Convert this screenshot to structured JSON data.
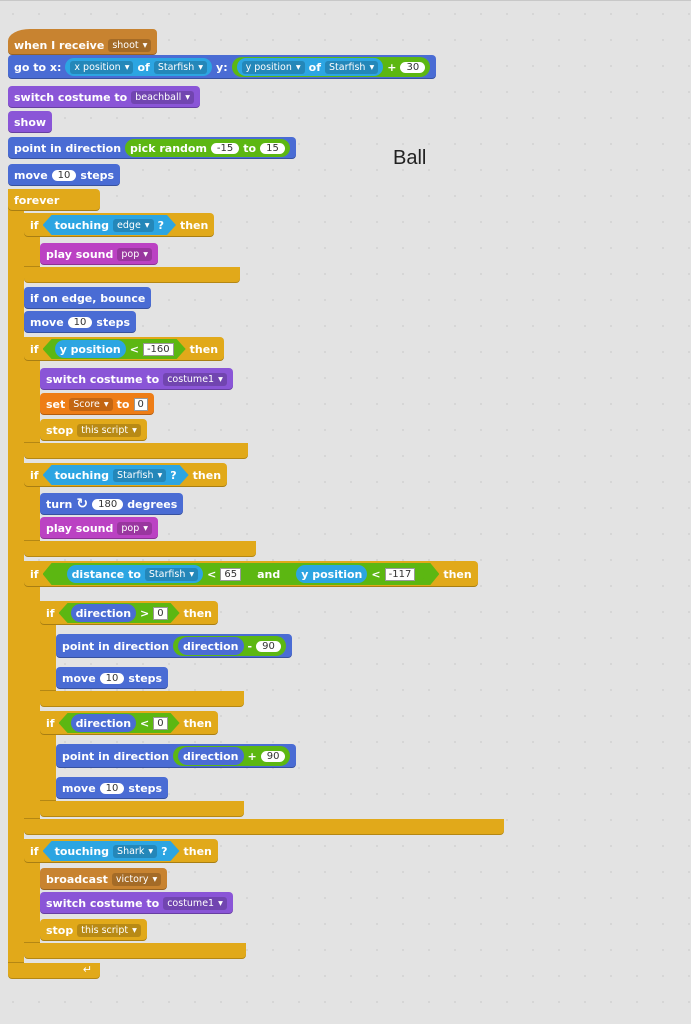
{
  "sprite_name": "Ball",
  "blocks": [
    [
      "when I receive",
      "shoot"
    ],
    [
      "go to x:",
      [
        "x position",
        "of",
        "Starfish"
      ],
      "y:",
      [
        [
          "y position",
          "of",
          "Starfish"
        ],
        "+",
        "30"
      ]
    ],
    [
      "switch costume to",
      "beachball"
    ],
    [
      "show"
    ],
    [
      "point in direction",
      [
        "pick random",
        "-15",
        "to",
        "15"
      ]
    ],
    [
      "move",
      "10",
      "steps"
    ],
    [
      "forever"
    ],
    [
      "if",
      [
        "touching",
        "edge",
        "?"
      ],
      "then"
    ],
    [
      "play sound",
      "pop"
    ],
    [
      "if on edge, bounce"
    ],
    [
      "move",
      "10",
      "steps"
    ],
    [
      "if",
      [
        [
          "y position"
        ],
        "<",
        "-160"
      ],
      "then"
    ],
    [
      "switch costume to",
      "costume1"
    ],
    [
      "set",
      "Score",
      "to",
      "0"
    ],
    [
      "stop",
      "this script"
    ],
    [
      "if",
      [
        "touching",
        "Starfish",
        "?"
      ],
      "then"
    ],
    [
      "turn",
      "180",
      "degrees"
    ],
    [
      "play sound",
      "pop"
    ],
    [
      "if",
      [
        [
          [
            "distance to",
            "Starfish"
          ],
          "<",
          "65"
        ],
        "and",
        [
          [
            "y position"
          ],
          "<",
          "-117"
        ]
      ],
      "then"
    ],
    [
      "if",
      [
        [
          "direction"
        ],
        ">",
        "0"
      ],
      "then"
    ],
    [
      "point in direction",
      [
        [
          "direction"
        ],
        "-",
        "90"
      ]
    ],
    [
      "move",
      "10",
      "steps"
    ],
    [
      "if",
      [
        [
          "direction"
        ],
        "<",
        "0"
      ],
      "then"
    ],
    [
      "point in direction",
      [
        [
          "direction"
        ],
        "+",
        "90"
      ]
    ],
    [
      "move",
      "10",
      "steps"
    ],
    [
      "if",
      [
        "touching",
        "Shark",
        "?"
      ],
      "then"
    ],
    [
      "broadcast",
      "victory"
    ],
    [
      "switch costume to",
      "costume1"
    ],
    [
      "stop",
      "this script"
    ]
  ]
}
